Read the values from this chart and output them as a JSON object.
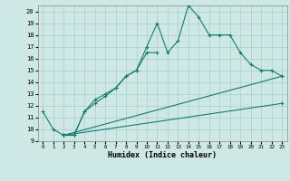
{
  "xlabel": "Humidex (Indice chaleur)",
  "bg_color": "#cde8e5",
  "line_color": "#1a7a6e",
  "grid_color": "#aacfcc",
  "xlim": [
    -0.5,
    23.5
  ],
  "ylim": [
    9,
    20.5
  ],
  "xticks": [
    0,
    1,
    2,
    3,
    4,
    5,
    6,
    7,
    8,
    9,
    10,
    11,
    12,
    13,
    14,
    15,
    16,
    17,
    18,
    19,
    20,
    21,
    22,
    23
  ],
  "yticks": [
    9,
    10,
    11,
    12,
    13,
    14,
    15,
    16,
    17,
    18,
    19,
    20
  ],
  "line1_x": [
    0,
    1,
    2,
    3,
    4,
    5,
    6,
    7,
    8,
    9,
    10,
    11,
    12,
    13,
    14,
    15,
    16,
    17,
    18,
    19,
    20,
    21,
    22,
    23
  ],
  "line1_y": [
    11.5,
    10.0,
    9.5,
    9.5,
    11.5,
    12.5,
    13.0,
    13.5,
    14.5,
    15.0,
    17.0,
    19.0,
    16.5,
    17.5,
    20.5,
    19.5,
    18.0,
    18.0,
    18.0,
    16.5,
    15.5,
    15.0,
    15.0,
    14.5
  ],
  "line2_x": [
    2,
    3,
    4,
    5,
    6,
    7,
    8,
    9,
    10,
    11
  ],
  "line2_y": [
    9.5,
    9.5,
    11.5,
    12.2,
    12.8,
    13.5,
    14.5,
    15.0,
    16.5,
    16.5
  ],
  "line3_x": [
    2,
    23
  ],
  "line3_y": [
    9.5,
    14.5
  ],
  "line4_x": [
    2,
    23
  ],
  "line4_y": [
    9.5,
    12.2
  ]
}
